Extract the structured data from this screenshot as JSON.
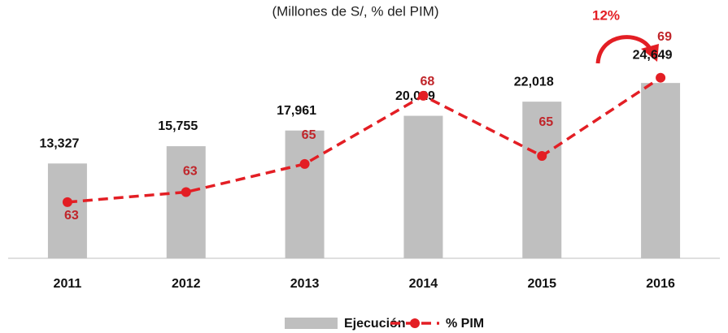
{
  "chart_data": {
    "type": "bar-line",
    "title": "(Millones de S/, % del PIM)",
    "annotation": "12%",
    "categories": [
      "2011",
      "2012",
      "2013",
      "2014",
      "2015",
      "2016"
    ],
    "ylim": [
      0,
      33000
    ],
    "y2lim": [
      60,
      71.7
    ],
    "series": [
      {
        "name": "Ejecución",
        "type": "bar",
        "color": "#bfbfbf",
        "values": [
          13327,
          15755,
          17961,
          20029,
          22018,
          24649
        ],
        "value_labels": [
          "13,327",
          "15,755",
          "17,961",
          "20,029",
          "22,018",
          "24,649"
        ]
      },
      {
        "name": "% PIM",
        "type": "line",
        "axis": "y2",
        "color": "#e31e24",
        "dashed": true,
        "values": [
          62.8,
          63.3,
          64.7,
          68.1,
          65.1,
          69
        ],
        "value_labels": [
          "63",
          "63",
          "65",
          "68",
          "65",
          "69"
        ]
      }
    ]
  }
}
